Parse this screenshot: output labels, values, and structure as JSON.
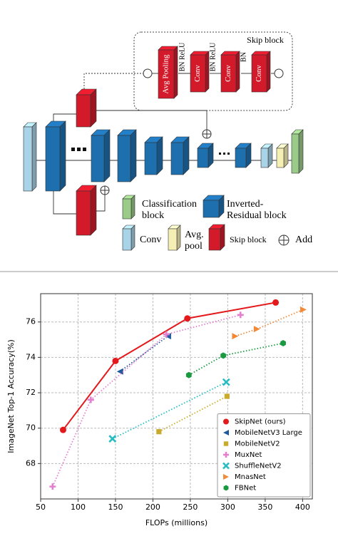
{
  "diagram": {
    "skip_block": {
      "title": "Skip block",
      "layers": [
        "Avg Pooling",
        "Conv",
        "Conv",
        "Conv"
      ],
      "annotations": [
        "BN ReLU",
        "BN ReLU",
        "BN"
      ]
    },
    "legend": [
      {
        "label": [
          "Classification",
          "block"
        ]
      },
      {
        "label": [
          "Inverted-",
          "Residual block"
        ]
      },
      {
        "label": [
          "Conv"
        ]
      },
      {
        "label": [
          "Avg.",
          "pool"
        ]
      },
      {
        "label": [
          "Skip block"
        ]
      },
      {
        "label": [
          "Add"
        ]
      }
    ]
  },
  "chart_data": {
    "type": "scatter",
    "x_label": "FLOPs (millions)",
    "y_label": "ImageNet Top-1 Accuracy(%)",
    "xlim": [
      50,
      413
    ],
    "ylim": [
      66,
      77.6
    ],
    "xticks": [
      50,
      100,
      150,
      200,
      250,
      300,
      350,
      400
    ],
    "yticks": [
      68,
      70,
      72,
      74,
      76
    ],
    "grid": true,
    "legend": "lower right",
    "series": [
      {
        "name": "SkipNet (ours)",
        "color": "#e3191c",
        "marker": "circle",
        "linestyle": "solid",
        "x": [
          80,
          150,
          246,
          364
        ],
        "values": [
          69.9,
          73.8,
          76.2,
          77.1
        ]
      },
      {
        "name": "MobileNetV3 Large",
        "color": "#1f5a9c",
        "marker": "triangle-left",
        "linestyle": "dotted",
        "x": [
          156,
          220
        ],
        "values": [
          73.2,
          75.2
        ]
      },
      {
        "name": "MobileNetV2",
        "color": "#c9ab2c",
        "marker": "square",
        "linestyle": "dotted",
        "x": [
          208,
          299
        ],
        "values": [
          69.8,
          71.8
        ]
      },
      {
        "name": "MuxNet",
        "color": "#e47fcf",
        "marker": "plus",
        "linestyle": "dotted",
        "x": [
          66,
          117,
          218,
          317
        ],
        "values": [
          66.7,
          71.6,
          75.3,
          76.4
        ]
      },
      {
        "name": "ShuffleNetV2",
        "color": "#27bcc4",
        "marker": "x",
        "linestyle": "dotted",
        "x": [
          146,
          298
        ],
        "values": [
          69.4,
          72.6
        ]
      },
      {
        "name": "MnasNet",
        "color": "#f28a3a",
        "marker": "triangle-right",
        "linestyle": "dotted",
        "x": [
          310,
          339,
          401
        ],
        "values": [
          75.2,
          75.6,
          76.7
        ]
      },
      {
        "name": "FBNet",
        "color": "#1a9a40",
        "marker": "hexagon",
        "linestyle": "dotted",
        "x": [
          248,
          294,
          374
        ],
        "values": [
          73.0,
          74.1,
          74.8
        ]
      }
    ]
  }
}
